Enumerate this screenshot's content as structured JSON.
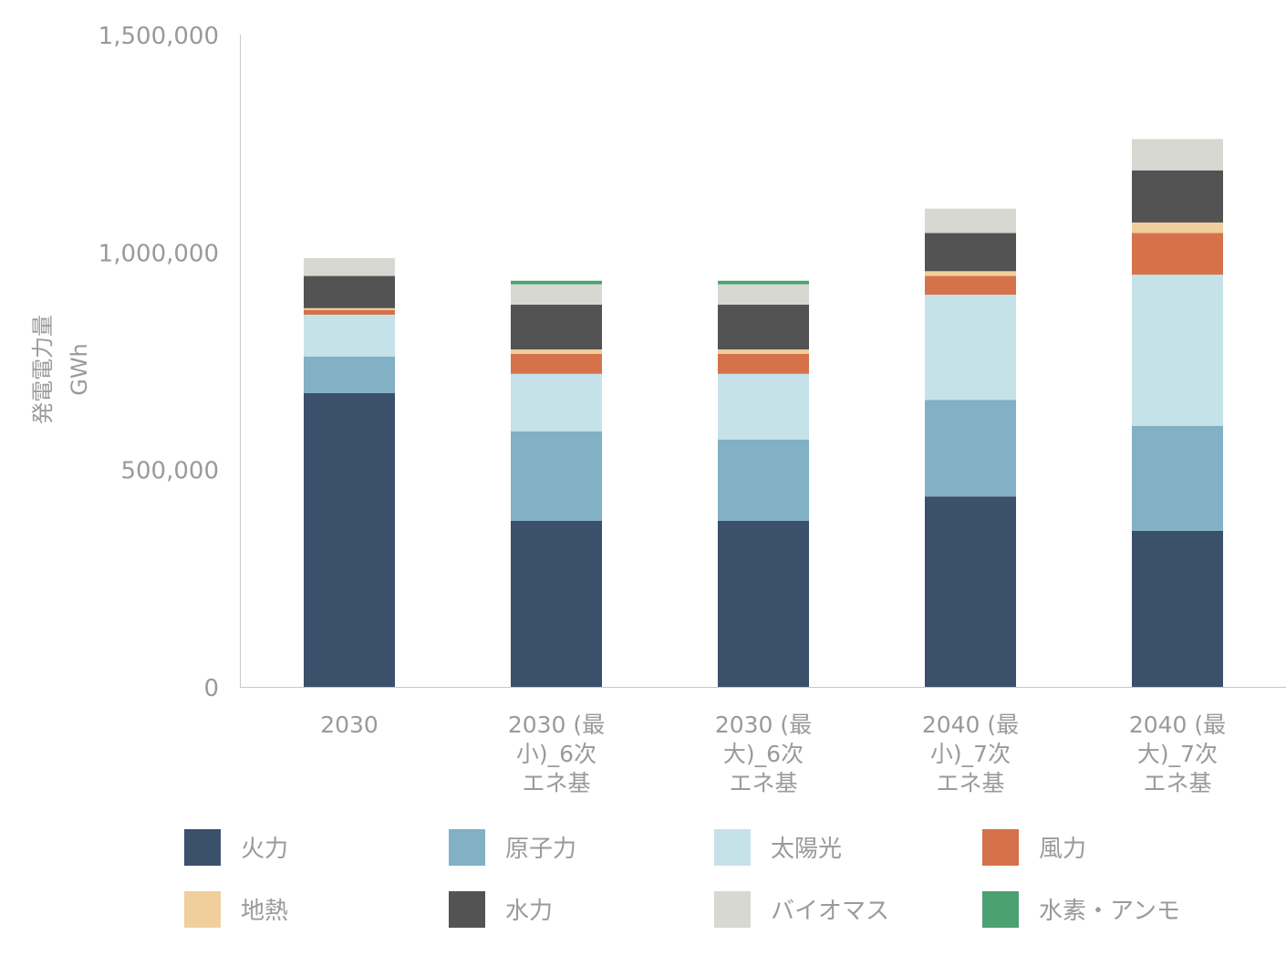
{
  "chart_data": {
    "type": "bar",
    "stacked": true,
    "title": "",
    "ylabel": [
      "発電電力量",
      "GWh"
    ],
    "xlabel": "",
    "ylim": [
      0,
      1500000
    ],
    "yticks": [
      0,
      500000,
      1000000,
      1500000
    ],
    "ytick_labels": [
      "0",
      "500,000",
      "1,000,000",
      "1,500,000"
    ],
    "grid": false,
    "legend_position": "bottom",
    "categories": [
      [
        "2030"
      ],
      [
        "2030 (最",
        "小)_6次",
        "エネ基"
      ],
      [
        "2030 (最",
        "大)_6次",
        "エネ基"
      ],
      [
        "2040 (最",
        "小)_7次",
        "エネ基"
      ],
      [
        "2040 (最",
        "大)_7次",
        "エネ基"
      ]
    ],
    "series": [
      {
        "name": "火力",
        "color": "#3a506b",
        "values": [
          676000,
          382000,
          382000,
          438000,
          359000
        ]
      },
      {
        "name": "原子力",
        "color": "#82b0c4",
        "values": [
          84000,
          206000,
          187000,
          222000,
          241000
        ]
      },
      {
        "name": "太陽光",
        "color": "#c6e2e9",
        "values": [
          96000,
          132000,
          151000,
          242000,
          348000
        ]
      },
      {
        "name": "風力",
        "color": "#d5724a",
        "values": [
          11000,
          46000,
          46000,
          43000,
          96000
        ]
      },
      {
        "name": "地熱",
        "color": "#f0cf9c",
        "values": [
          4000,
          10000,
          10000,
          11000,
          24000
        ]
      },
      {
        "name": "水力",
        "color": "#535353",
        "values": [
          74000,
          103000,
          103000,
          88000,
          120000
        ]
      },
      {
        "name": "バイオマス",
        "color": "#d8d8d2",
        "values": [
          41000,
          47000,
          47000,
          56000,
          72000
        ]
      },
      {
        "name": "水素・アンモ",
        "color": "#4ba171",
        "values": [
          0,
          8000,
          8000,
          0,
          0
        ]
      }
    ]
  }
}
